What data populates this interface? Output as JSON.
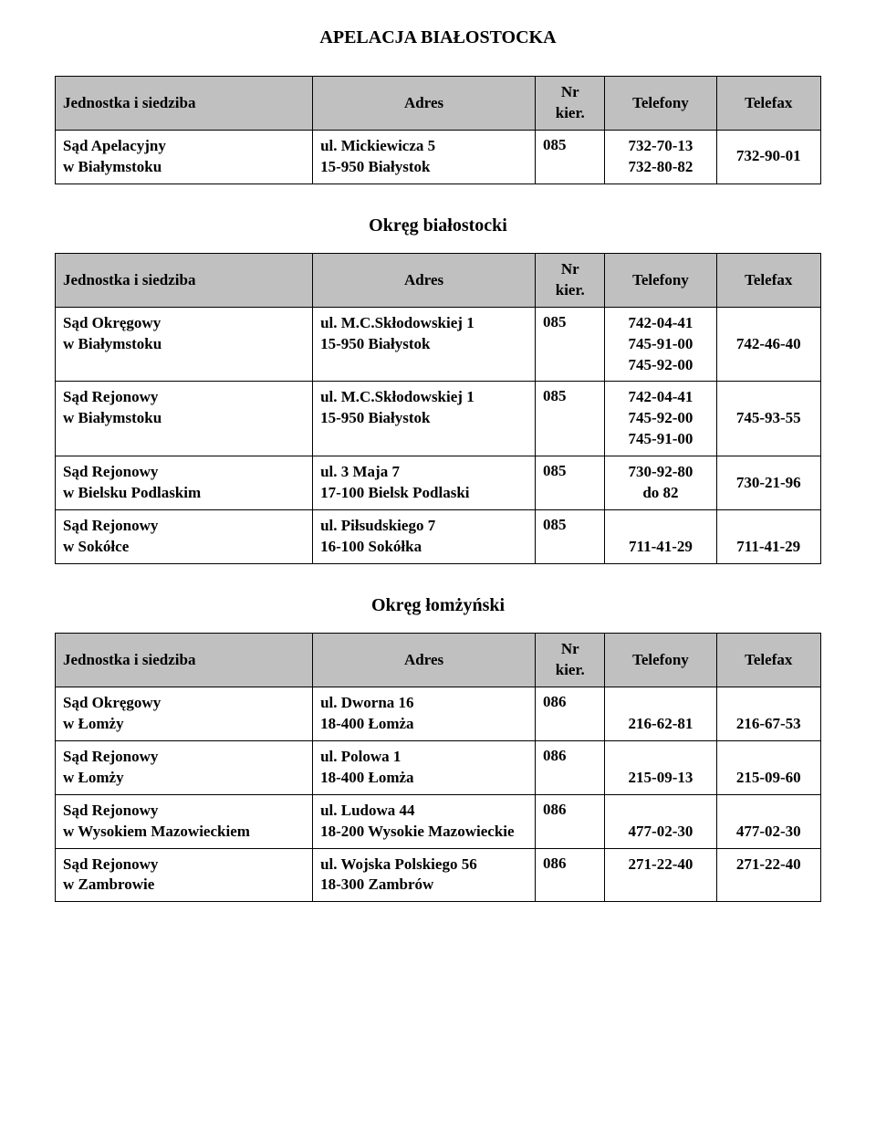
{
  "title": "APELACJA BIAŁOSTOCKA",
  "headers": {
    "unit": "Jednostka i siedziba",
    "address": "Adres",
    "nr": "Nr",
    "kier": "kier.",
    "telefony": "Telefony",
    "telefax": "Telefax"
  },
  "colors": {
    "header_bg": "#c0c0c0",
    "border": "#000000",
    "text": "#000000",
    "background": "#ffffff"
  },
  "tables": [
    {
      "section_title": null,
      "rows": [
        {
          "unit_lines": [
            "Sąd Apelacyjny",
            "w Białymstoku"
          ],
          "addr_lines": [
            "ul. Mickiewicza 5",
            "15-950 Białystok"
          ],
          "nr": "085",
          "tel_lines": [
            "732-70-13",
            "732-80-82"
          ],
          "fax_lines": [
            "732-90-01"
          ],
          "fax_centered": true
        }
      ]
    },
    {
      "section_title": "Okręg białostocki",
      "rows": [
        {
          "unit_lines": [
            "Sąd Okręgowy",
            "w Białymstoku"
          ],
          "addr_lines": [
            "ul. M.C.Skłodowskiej 1",
            "15-950 Białystok"
          ],
          "nr": "085",
          "tel_lines": [
            "742-04-41",
            "745-91-00",
            "745-92-00"
          ],
          "fax_lines": [
            "",
            "742-46-40"
          ],
          "fax_centered": false
        },
        {
          "unit_lines": [
            "Sąd Rejonowy",
            "w Białymstoku"
          ],
          "addr_lines": [
            "ul. M.C.Skłodowskiej 1",
            "15-950 Białystok"
          ],
          "nr": "085",
          "tel_lines": [
            "742-04-41",
            "745-92-00",
            "745-91-00"
          ],
          "fax_lines": [
            "",
            "745-93-55"
          ],
          "fax_centered": false
        },
        {
          "unit_lines": [
            "Sąd Rejonowy",
            "w Bielsku Podlaskim"
          ],
          "addr_lines": [
            "ul. 3 Maja 7",
            "17-100 Bielsk Podlaski"
          ],
          "nr": "085",
          "tel_lines": [
            "730-92-80",
            "do 82"
          ],
          "fax_lines": [
            "730-21-96"
          ],
          "fax_centered": true
        },
        {
          "unit_lines": [
            "Sąd Rejonowy",
            "w Sokółce"
          ],
          "addr_lines": [
            "ul. Piłsudskiego 7",
            "16-100 Sokółka"
          ],
          "nr": "085",
          "tel_lines": [
            "",
            "711-41-29"
          ],
          "fax_lines": [
            "",
            "711-41-29"
          ],
          "fax_centered": false
        }
      ]
    },
    {
      "section_title": "Okręg łomżyński",
      "rows": [
        {
          "unit_lines": [
            "Sąd Okręgowy",
            "w Łomży"
          ],
          "addr_lines": [
            "ul. Dworna 16",
            "18-400 Łomża"
          ],
          "nr": "086",
          "tel_lines": [
            "",
            "216-62-81"
          ],
          "fax_lines": [
            "",
            "216-67-53"
          ],
          "fax_centered": false
        },
        {
          "unit_lines": [
            "Sąd Rejonowy",
            "w Łomży"
          ],
          "addr_lines": [
            "ul. Polowa 1",
            "18-400 Łomża"
          ],
          "nr": "086",
          "tel_lines": [
            "",
            "215-09-13"
          ],
          "fax_lines": [
            "",
            "215-09-60"
          ],
          "fax_centered": false
        },
        {
          "unit_lines": [
            "Sąd Rejonowy",
            "w Wysokiem Mazowieckiem"
          ],
          "addr_lines": [
            "ul. Ludowa 44",
            "18-200 Wysokie Mazowieckie"
          ],
          "nr": "086",
          "tel_lines": [
            "",
            "477-02-30"
          ],
          "fax_lines": [
            "",
            "477-02-30"
          ],
          "fax_centered": false
        },
        {
          "unit_lines": [
            "Sąd Rejonowy",
            "w Zambrowie"
          ],
          "addr_lines": [
            "ul. Wojska Polskiego 56",
            "18-300 Zambrów"
          ],
          "nr": "086",
          "tel_lines": [
            "271-22-40"
          ],
          "fax_lines": [
            "271-22-40"
          ],
          "fax_centered": false
        }
      ]
    }
  ]
}
